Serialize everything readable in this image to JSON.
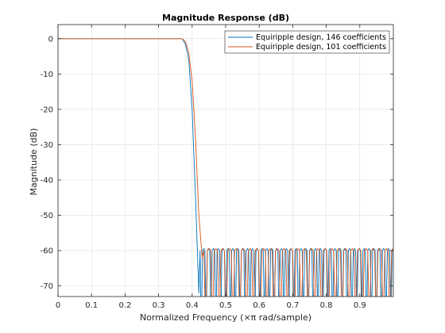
{
  "chart_data": {
    "type": "line",
    "title": "Magnitude Response (dB)",
    "xlabel": "Normalized Frequency (×π rad/sample)",
    "ylabel": "Magnitude (dB)",
    "xlim": [
      0,
      1
    ],
    "ylim": [
      -73,
      4
    ],
    "xticks": [
      0,
      0.1,
      0.2,
      0.3,
      0.4,
      0.5,
      0.6,
      0.7,
      0.8,
      0.9
    ],
    "xtick_labels": [
      "0",
      "0.1",
      "0.2",
      "0.3",
      "0.4",
      "0.5",
      "0.6",
      "0.7",
      "0.8",
      "0.9"
    ],
    "yticks": [
      0,
      -10,
      -20,
      -30,
      -40,
      -50,
      -60,
      -70
    ],
    "ytick_labels": [
      "0",
      "-10",
      "-20",
      "-30",
      "-40",
      "-50",
      "-60",
      "-70"
    ],
    "grid": true,
    "legend_position": "top-right",
    "series": [
      {
        "name": "Equiripple design, 146 coefficients",
        "color": "#0072bd",
        "passband_edge": 0.37,
        "stopband_edge": 0.42,
        "stopband_level": -60,
        "ripple_count": 40,
        "x": [
          0,
          0.37,
          0.38,
          0.39,
          0.4,
          0.41,
          0.42
        ],
        "y": [
          0,
          0,
          -1.5,
          -6,
          -20,
          -45,
          -72
        ]
      },
      {
        "name": "Equiripple design, 101 coefficients",
        "color": "#d95319",
        "passband_edge": 0.37,
        "stopband_edge": 0.43,
        "stopband_level": -60,
        "ripple_count": 28,
        "x": [
          0,
          0.37,
          0.38,
          0.39,
          0.4,
          0.41,
          0.42,
          0.43
        ],
        "y": [
          0,
          0,
          -0.8,
          -4,
          -12,
          -28,
          -50,
          -62
        ]
      }
    ]
  }
}
